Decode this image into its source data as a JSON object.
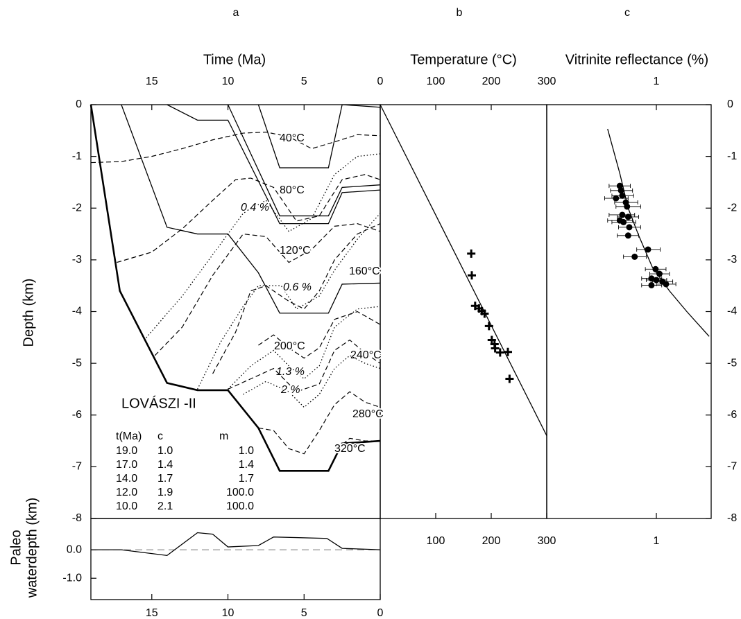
{
  "chart_data": [
    {
      "type": "line",
      "label": "a",
      "x_label": "Time (Ma)",
      "y_label": "Depth (km)",
      "xlim": [
        19,
        0
      ],
      "xticks": [
        15,
        10,
        5,
        0
      ],
      "ylim": [
        -8,
        0
      ],
      "yticks": [
        0,
        -1,
        -2,
        -3,
        -4,
        -5,
        -6,
        -7,
        -8
      ],
      "annotation": "LOVÁSZI -II",
      "table": {
        "header": [
          "t(Ma)",
          "c",
          "m"
        ],
        "rows": [
          [
            "19.0",
            "1.0",
            "1.0"
          ],
          [
            "17.0",
            "1.4",
            "1.4"
          ],
          [
            "14.0",
            "1.7",
            "1.7"
          ],
          [
            "12.0",
            "1.9",
            "100.0"
          ],
          [
            "10.0",
            "2.1",
            "100.0"
          ]
        ]
      },
      "series": [
        {
          "style": "thick",
          "color": "#000",
          "x": [
            19,
            17.1,
            14,
            12,
            10,
            8,
            6.6,
            3.4,
            2.5,
            0
          ],
          "values": [
            0,
            -3.6,
            -5.38,
            -5.52,
            -5.52,
            -6.25,
            -7.08,
            -7.08,
            -6.55,
            -6.5
          ]
        },
        {
          "style": "solid",
          "color": "#000",
          "x": [
            17,
            14,
            12,
            10,
            8,
            6.6,
            3.4,
            2.5,
            0
          ],
          "values": [
            0,
            -2.37,
            -2.5,
            -2.5,
            -3.25,
            -4.03,
            -4.03,
            -3.47,
            -3.45
          ]
        },
        {
          "style": "solid",
          "color": "#000",
          "x": [
            14,
            12,
            10,
            6.6,
            3.4,
            2.5,
            0
          ],
          "values": [
            0,
            -0.3,
            -0.3,
            -2.3,
            -2.3,
            -1.7,
            -1.65
          ]
        },
        {
          "style": "solid",
          "color": "#000",
          "x": [
            10,
            6.6,
            3.4,
            2.5,
            0
          ],
          "values": [
            0,
            -2.15,
            -2.15,
            -1.6,
            -1.55
          ]
        },
        {
          "style": "solid",
          "color": "#000",
          "x": [
            8,
            6.6,
            3.4,
            2.5,
            0
          ],
          "values": [
            0,
            -1.22,
            -1.22,
            0,
            -0.05
          ]
        },
        {
          "name": "40°C",
          "style": "dashed",
          "color": "#000",
          "x": [
            19,
            17,
            15,
            13,
            11,
            9,
            7.5,
            6,
            4.5,
            3,
            1.5,
            0
          ],
          "values": [
            -1.12,
            -1.1,
            -1.0,
            -0.85,
            -0.68,
            -0.55,
            -0.53,
            -0.62,
            -0.85,
            -0.72,
            -0.58,
            -0.6
          ]
        },
        {
          "name": "80°C",
          "style": "dashed",
          "color": "#000",
          "x": [
            17.3,
            15,
            13,
            11,
            9.5,
            8.5,
            7,
            5.5,
            4,
            2.5,
            1,
            0
          ],
          "values": [
            -3.05,
            -2.85,
            -2.4,
            -1.85,
            -1.45,
            -1.42,
            -1.6,
            -2.25,
            -2.15,
            -1.45,
            -1.35,
            -1.45
          ]
        },
        {
          "name": "0.4 %",
          "style": "dotted",
          "color": "#000",
          "x": [
            15.5,
            13,
            11,
            9,
            7.5,
            6,
            4.5,
            3,
            1.5,
            0
          ],
          "values": [
            -4.55,
            -3.7,
            -2.9,
            -2.1,
            -1.85,
            -2.45,
            -2.2,
            -1.35,
            -1.0,
            -0.95
          ]
        },
        {
          "name": "120°C",
          "style": "dashed",
          "color": "#000",
          "x": [
            14.8,
            13,
            11,
            9,
            7.5,
            6,
            4.5,
            3,
            1.5,
            0
          ],
          "values": [
            -4.85,
            -4.3,
            -3.3,
            -2.5,
            -2.55,
            -3.05,
            -2.8,
            -2.35,
            -2.3,
            -2.45
          ]
        },
        {
          "name": "0.6 %",
          "style": "dotted",
          "color": "#000",
          "x": [
            12,
            10.5,
            9,
            8,
            6.5,
            5.5,
            4,
            3,
            1.5,
            0
          ],
          "values": [
            -5.5,
            -4.6,
            -3.9,
            -3.5,
            -3.5,
            -3.95,
            -3.7,
            -3.2,
            -2.6,
            -2.1
          ]
        },
        {
          "name": "160°C",
          "style": "dashed",
          "color": "#000",
          "x": [
            11,
            9.5,
            8.5,
            7.5,
            6,
            5,
            4,
            3,
            1.5,
            0
          ],
          "values": [
            -5.2,
            -4.4,
            -3.6,
            -3.5,
            -3.8,
            -3.95,
            -3.6,
            -3.0,
            -2.5,
            -2.3
          ]
        },
        {
          "name": "200°C",
          "style": "dashed",
          "color": "#000",
          "x": [
            8,
            7,
            6,
            5,
            4,
            3,
            1.5,
            0
          ],
          "values": [
            -4.65,
            -4.45,
            -4.7,
            -4.9,
            -4.7,
            -4.15,
            -4.0,
            -4.25
          ]
        },
        {
          "name": "1.3 %",
          "style": "dotted",
          "color": "#000",
          "x": [
            10,
            8.5,
            7,
            6,
            5,
            4,
            3,
            1.5,
            0
          ],
          "values": [
            -5.5,
            -5.05,
            -4.75,
            -5.05,
            -5.3,
            -5.05,
            -4.3,
            -3.95,
            -3.9
          ]
        },
        {
          "name": "240°C",
          "style": "dashed",
          "color": "#000",
          "x": [
            10,
            8.5,
            7,
            5.5,
            4,
            3,
            2,
            1,
            0
          ],
          "values": [
            -5.5,
            -5.3,
            -5.1,
            -5.55,
            -5.4,
            -4.75,
            -4.55,
            -4.8,
            -5.0
          ]
        },
        {
          "name": "2 %",
          "style": "dotted",
          "color": "#000",
          "x": [
            9,
            7.5,
            6,
            5,
            4,
            3,
            2,
            1,
            0
          ],
          "values": [
            -5.6,
            -5.35,
            -5.55,
            -5.85,
            -5.6,
            -5.1,
            -4.85,
            -5.0,
            -5.1
          ]
        },
        {
          "name": "280°C",
          "style": "dashed",
          "color": "#000",
          "x": [
            8,
            7,
            6,
            5,
            4,
            3,
            2,
            1,
            0
          ],
          "values": [
            -6.25,
            -6.3,
            -6.65,
            -6.75,
            -6.3,
            -5.8,
            -5.55,
            -5.75,
            -5.85
          ]
        },
        {
          "name": "320°C",
          "style": "dashed",
          "color": "#000",
          "x": [
            3.4,
            2.6,
            2,
            1,
            0
          ],
          "values": [
            -7.08,
            -6.6,
            -6.45,
            -6.5,
            -6.5
          ]
        }
      ]
    },
    {
      "type": "scatter",
      "label": "b",
      "x_label": "Temperature (°C)",
      "xlim": [
        0,
        300
      ],
      "xticks": [
        100,
        200,
        300
      ],
      "ylim": [
        -8,
        0
      ],
      "series": [
        {
          "style": "solid",
          "color": "#000",
          "x": [
            0,
            300
          ],
          "values": [
            0,
            -6.4
          ]
        },
        {
          "marker": "plus",
          "color": "#000",
          "x": [
            164,
            165,
            171,
            178,
            183,
            188,
            196,
            201,
            206,
            207,
            216,
            230,
            233
          ],
          "values": [
            -2.88,
            -3.3,
            -3.89,
            -3.94,
            -3.99,
            -4.04,
            -4.28,
            -4.55,
            -4.63,
            -4.71,
            -4.79,
            -4.78,
            -5.3
          ]
        }
      ]
    },
    {
      "type": "scatter",
      "label": "c",
      "x_label": "Vitrinite reflectance (%)",
      "log_x": true,
      "xlim": [
        0.25,
        2
      ],
      "xticks": [
        1
      ],
      "ylim": [
        -8,
        0
      ],
      "yticks": [
        0,
        -1,
        -2,
        -3,
        -4,
        -5,
        -6,
        -7,
        -8
      ],
      "series": [
        {
          "style": "solid",
          "color": "#000",
          "x": [
            0.54,
            0.63,
            0.7,
            0.8,
            0.95,
            1.18,
            1.47,
            1.95
          ],
          "values": [
            -0.47,
            -1.33,
            -2.0,
            -2.53,
            -3.14,
            -3.6,
            -4.0,
            -4.48
          ]
        },
        {
          "marker": "dot",
          "color": "#000",
          "x": [
            0.63,
            0.64,
            0.65,
            0.6,
            0.68,
            0.69,
            0.65,
            0.7,
            0.63,
            0.66,
            0.71,
            0.7,
            0.9,
            0.76,
            0.99,
            1.04,
            1.0,
            1.08,
            0.94,
            1.13,
            0.94
          ],
          "values": [
            -1.57,
            -1.66,
            -1.76,
            -1.81,
            -1.89,
            -1.97,
            -2.13,
            -2.17,
            -2.24,
            -2.27,
            -2.37,
            -2.53,
            -2.8,
            -2.94,
            -3.18,
            -3.27,
            -3.39,
            -3.42,
            -3.36,
            -3.47,
            -3.49
          ],
          "x_low": [
            0.55,
            0.56,
            0.57,
            0.52,
            0.59,
            0.6,
            0.55,
            0.61,
            0.54,
            0.57,
            0.62,
            0.61,
            0.78,
            0.66,
            0.87,
            0.92,
            0.88,
            0.95,
            0.83,
            1.0,
            0.83
          ],
          "x_high": [
            0.72,
            0.74,
            0.75,
            0.7,
            0.79,
            0.82,
            0.76,
            0.8,
            0.74,
            0.77,
            0.82,
            0.8,
            1.05,
            0.88,
            1.13,
            1.18,
            1.14,
            1.23,
            1.07,
            1.28,
            1.07
          ]
        }
      ]
    },
    {
      "type": "line",
      "y_label": [
        "Paleo",
        "waterdepth (km)"
      ],
      "xlim": [
        19,
        0
      ],
      "xticks": [
        15,
        10,
        5,
        0
      ],
      "ylim": [
        -1.75,
        1.1
      ],
      "yticks": [
        {
          "value": 0,
          "label": "0.0"
        },
        {
          "value": -1,
          "label": "-1.0"
        }
      ],
      "reference_y": 0,
      "series": [
        {
          "style": "solid",
          "color": "#000",
          "x": [
            19,
            17,
            14,
            12,
            11,
            10,
            8,
            7,
            3.5,
            2.5,
            0
          ],
          "values": [
            0,
            0,
            -0.2,
            0.6,
            0.55,
            0.1,
            0.15,
            0.45,
            0.4,
            0.05,
            0
          ]
        }
      ]
    }
  ]
}
